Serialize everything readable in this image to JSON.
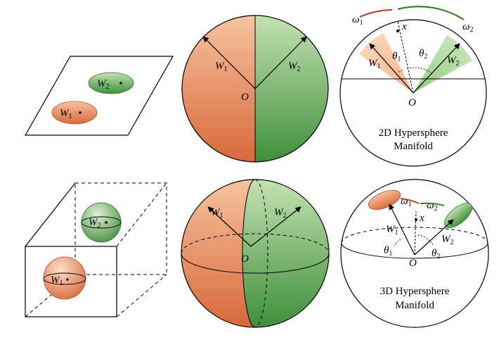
{
  "labels": {
    "W": "W",
    "sub1": "1",
    "sub2": "2",
    "O": "O",
    "omega": "ω",
    "theta": "θ",
    "x": "x"
  },
  "captions": {
    "sphere2d_line1": "2D Hypersphere",
    "sphere2d_line2": "Manifold",
    "sphere3d_line1": "3D Hypersphere",
    "sphere3d_line2": "Manifold"
  },
  "colors": {
    "orange_light": "#f7c8a6",
    "orange": "#e98a5c",
    "orange_dark": "#c95a2f",
    "green_light": "#c7e2b6",
    "green": "#6fb35a",
    "green_dark": "#2f7d34",
    "arc_red": "#b5482a",
    "arc_green": "#3e7d2b",
    "line": "#000000"
  }
}
